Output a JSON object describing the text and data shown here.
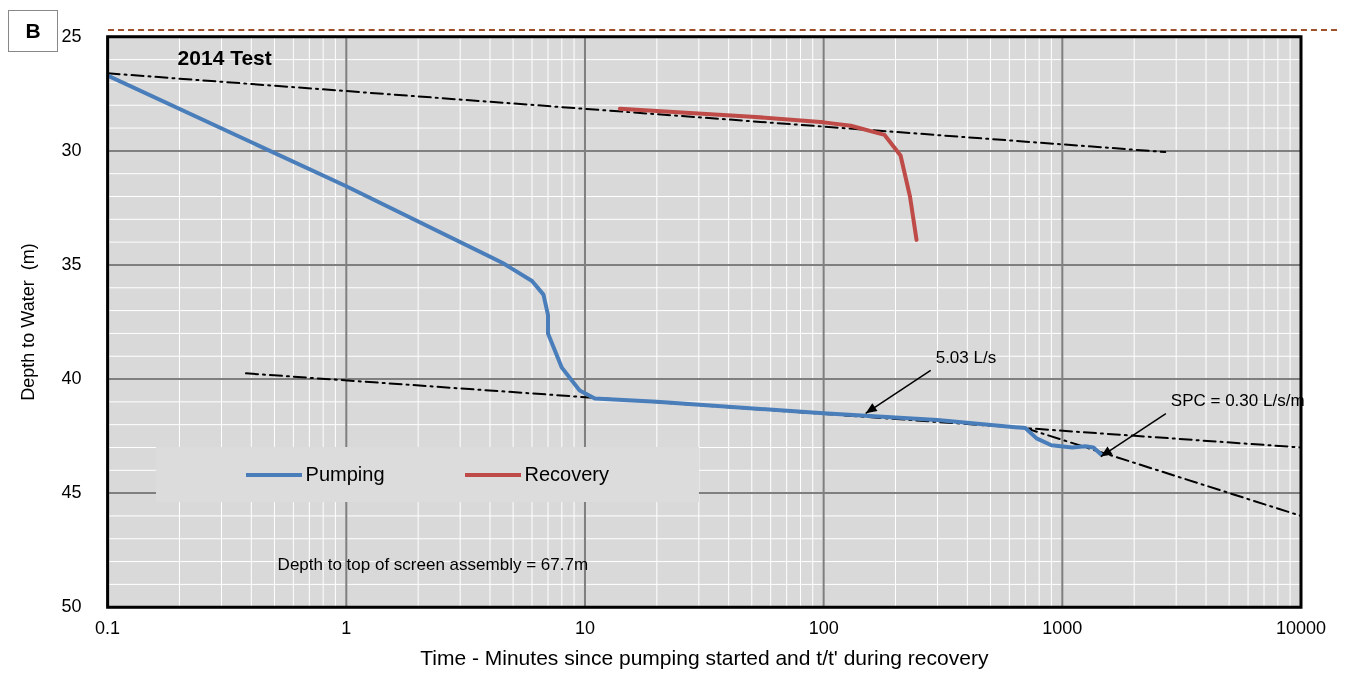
{
  "chart_data": {
    "type": "line",
    "xlabel": "Time - Minutes since pumping started and t/t' during recovery",
    "ylabel": "Depth to Water  (m)",
    "log": "x",
    "xlim": [
      0.1,
      10000
    ],
    "xticks": [
      0.1,
      1,
      10,
      100,
      1000,
      10000
    ],
    "ylim": [
      50,
      25
    ],
    "yticks": [
      25,
      30,
      35,
      40,
      45,
      50
    ],
    "grid": true,
    "legend": "bottom left",
    "line_style": "solid",
    "marker": "none",
    "annotations": [
      "B",
      "2014 Test",
      "Depth to top of screen assembly = 67.7m",
      {
        "text": "5.03 L/s",
        "x": 150,
        "y": 41.5
      },
      {
        "text": "SPC = 0.30 L/s/m",
        "x": 1450,
        "y": 43.4
      }
    ],
    "series": [
      {
        "name": "Pumping",
        "color": "#4a7ebb",
        "x": [
          0.1,
          1,
          4.5,
          6,
          6.7,
          7,
          7,
          8,
          9.5,
          11,
          20,
          100,
          300,
          700,
          780,
          900,
          1100,
          1250,
          1350,
          1450
        ],
        "values": [
          26.7,
          31.55,
          34.9,
          35.7,
          36.3,
          37.2,
          38,
          39.5,
          40.5,
          40.85,
          41,
          41.5,
          41.8,
          42.15,
          42.6,
          42.9,
          43,
          42.95,
          43,
          43.3
        ]
      },
      {
        "name": "Recovery",
        "color": "#be4b48",
        "x": [
          14,
          50,
          100,
          130,
          180,
          210,
          230,
          245
        ],
        "values": [
          28.15,
          28.5,
          28.75,
          28.9,
          29.3,
          30.2,
          32,
          33.9
        ]
      },
      {
        "color": "#000000",
        "line_style": "dashdot",
        "x": [
          0.1,
          2700
        ],
        "values": [
          26.6,
          30.05
        ]
      },
      {
        "color": "#000000",
        "line_style": "dashdot",
        "x": [
          0.38,
          10000
        ],
        "values": [
          39.75,
          43
        ]
      },
      {
        "color": "#000000",
        "line_style": "dashdot",
        "x": [
          700,
          10000
        ],
        "values": [
          42.15,
          46
        ]
      }
    ]
  }
}
